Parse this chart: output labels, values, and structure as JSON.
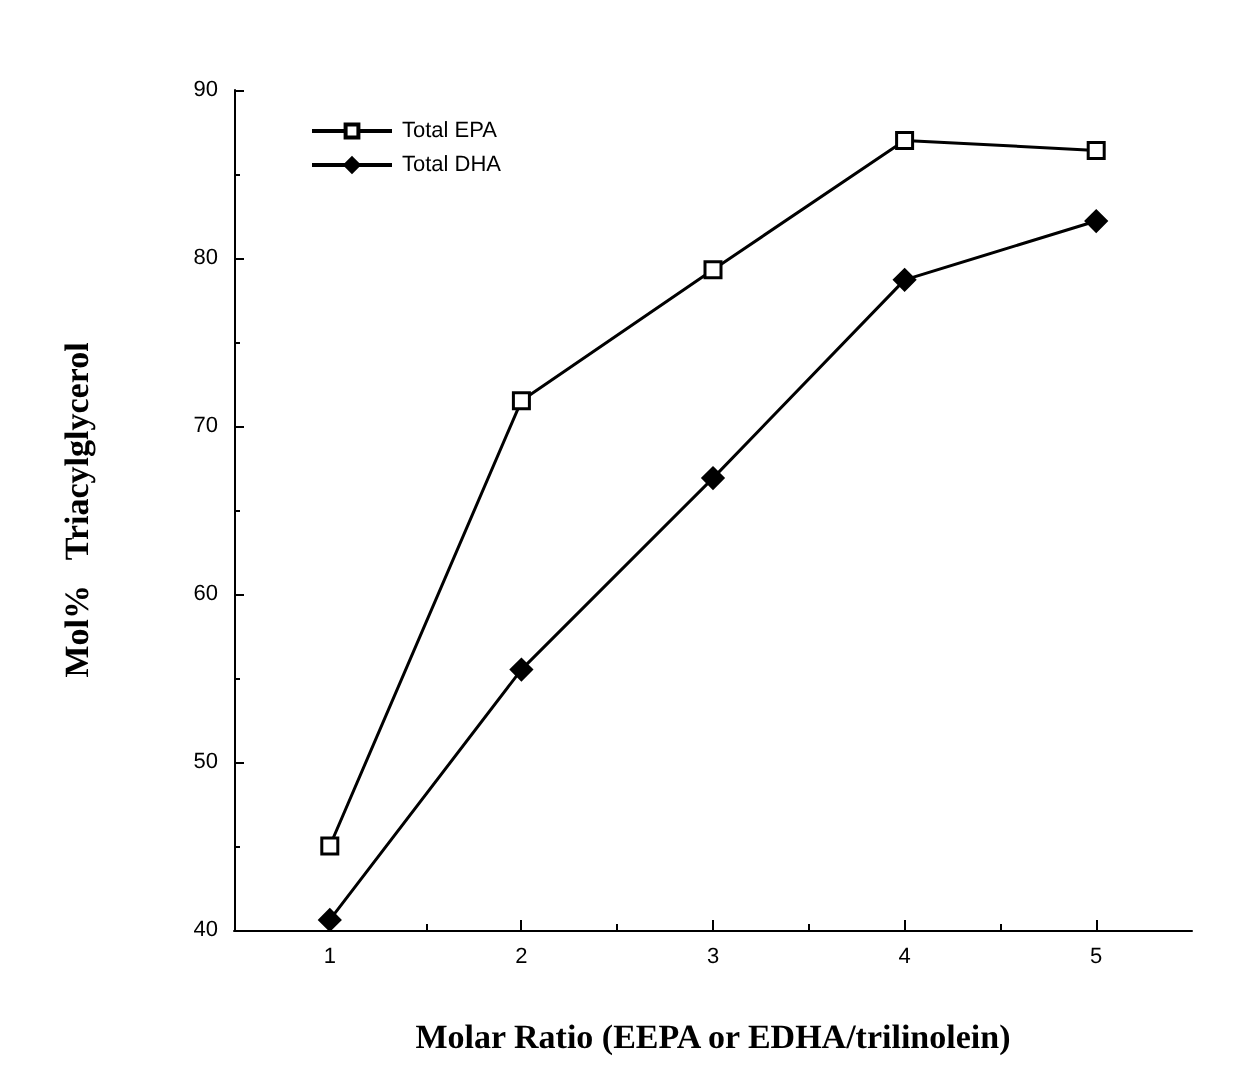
{
  "chart_data": {
    "type": "line",
    "xlabel": "Molar Ratio (EEPA or EDHA/trilinolein)",
    "ylabel": "Mol%   Triacylglycerol",
    "x": [
      1,
      2,
      3,
      4,
      5
    ],
    "xlim": [
      0.5,
      5.5
    ],
    "xticks": [
      1,
      2,
      3,
      4,
      5
    ],
    "ylim": [
      40,
      90
    ],
    "yticks": [
      40,
      50,
      60,
      70,
      80,
      90
    ],
    "series": [
      {
        "name": "Total EPA",
        "color": "#000000",
        "marker": "square",
        "values": [
          45,
          71.5,
          79.3,
          87,
          86.4
        ]
      },
      {
        "name": "Total DHA",
        "color": "#000000",
        "marker": "diamond",
        "values": [
          40.6,
          55.5,
          66.9,
          78.7,
          82.2
        ]
      }
    ],
    "grid": false,
    "legend": "top left",
    "line_style": "solid"
  }
}
